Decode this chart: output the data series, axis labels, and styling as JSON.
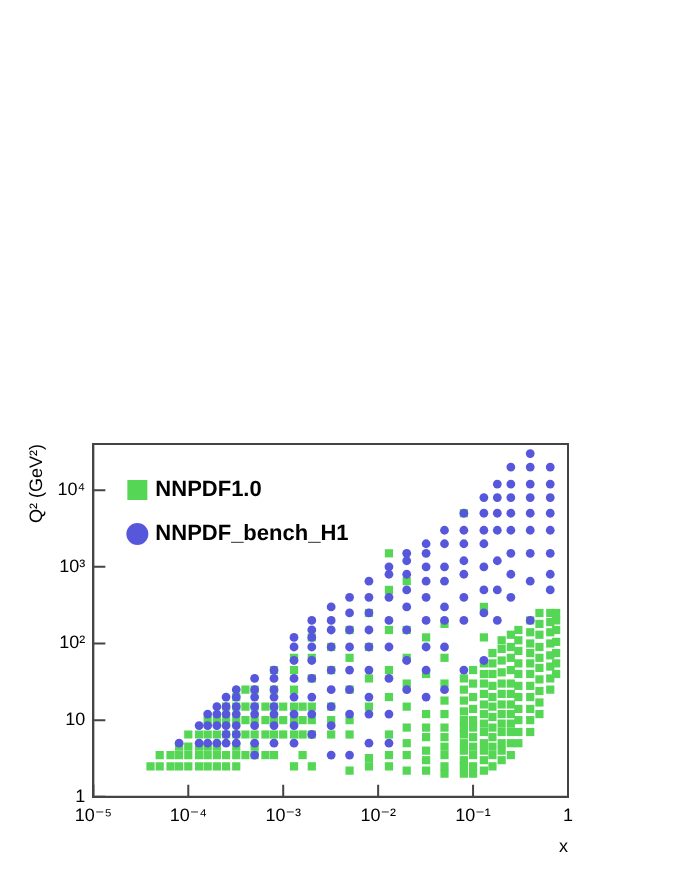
{
  "chart_data": {
    "type": "scatter",
    "xlabel": "x",
    "ylabel": "Q² (GeV²)",
    "log": "xy",
    "grid": false,
    "legend": "top left",
    "xlim": [
      1e-05,
      1
    ],
    "ylim": [
      1,
      40000
    ],
    "xticks": [
      {
        "value": 1e-05,
        "label": "10⁻⁵"
      },
      {
        "value": 0.0001,
        "label": "10⁻⁴"
      },
      {
        "value": 0.001,
        "label": "10⁻³"
      },
      {
        "value": 0.01,
        "label": "10⁻²"
      },
      {
        "value": 0.1,
        "label": "10⁻¹"
      },
      1
    ],
    "yticks": [
      1,
      10,
      {
        "value": 100,
        "label": "10²"
      },
      {
        "value": 1000,
        "label": "10³"
      },
      {
        "value": 10000,
        "label": "10⁴"
      }
    ],
    "series": [
      {
        "name": "NNPDF1.0",
        "color": "#55d655",
        "marker": "square",
        "x": [
          4e-05,
          5e-05,
          5e-05,
          6.5e-05,
          6.5e-05,
          8e-05,
          8e-05,
          8e-05,
          0.0001,
          0.0001,
          0.0001,
          0.0001,
          0.00013,
          0.00013,
          0.00013,
          0.00013,
          0.00016,
          0.00016,
          0.00016,
          0.00016,
          0.00016,
          0.0002,
          0.0002,
          0.0002,
          0.0002,
          0.0002,
          0.00025,
          0.00025,
          0.00025,
          0.00025,
          0.00025,
          0.00032,
          0.00032,
          0.00032,
          0.00032,
          0.00032,
          0.00032,
          0.00032,
          0.0004,
          0.0004,
          0.0004,
          0.0004,
          0.0004,
          0.0005,
          0.0005,
          0.0005,
          0.0005,
          0.0005,
          0.0005,
          0.00065,
          0.00065,
          0.00065,
          0.00065,
          0.0008,
          0.0008,
          0.0008,
          0.0008,
          0.0008,
          0.0008,
          0.001,
          0.001,
          0.001,
          0.0013,
          0.0013,
          0.0013,
          0.0013,
          0.0013,
          0.0013,
          0.0013,
          0.0016,
          0.0016,
          0.0016,
          0.0016,
          0.002,
          0.002,
          0.002,
          0.002,
          0.002,
          0.002,
          0.002,
          0.0032,
          0.0032,
          0.0032,
          0.0032,
          0.0032,
          0.005,
          0.005,
          0.005,
          0.005,
          0.005,
          0.005,
          0.008,
          0.008,
          0.008,
          0.008,
          0.008,
          0.008,
          0.013,
          0.013,
          0.013,
          0.013,
          0.013,
          0.013,
          0.013,
          0.013,
          0.02,
          0.02,
          0.02,
          0.02,
          0.02,
          0.02,
          0.02,
          0.02,
          0.02,
          0.032,
          0.032,
          0.032,
          0.032,
          0.032,
          0.032,
          0.032,
          0.032,
          0.05,
          0.05,
          0.05,
          0.05,
          0.05,
          0.05,
          0.05,
          0.05,
          0.05,
          0.05,
          0.05,
          0.08,
          0.08,
          0.08,
          0.08,
          0.08,
          0.08,
          0.08,
          0.08,
          0.08,
          0.08,
          0.08,
          0.08,
          0.08,
          0.1,
          0.1,
          0.1,
          0.1,
          0.1,
          0.1,
          0.1,
          0.1,
          0.1,
          0.1,
          0.1,
          0.13,
          0.13,
          0.13,
          0.13,
          0.13,
          0.13,
          0.13,
          0.13,
          0.13,
          0.13,
          0.13,
          0.13,
          0.13,
          0.13,
          0.16,
          0.16,
          0.16,
          0.16,
          0.16,
          0.16,
          0.16,
          0.16,
          0.16,
          0.16,
          0.16,
          0.16,
          0.2,
          0.2,
          0.2,
          0.2,
          0.2,
          0.2,
          0.2,
          0.2,
          0.2,
          0.2,
          0.2,
          0.2,
          0.2,
          0.25,
          0.25,
          0.25,
          0.25,
          0.25,
          0.25,
          0.25,
          0.25,
          0.25,
          0.25,
          0.25,
          0.25,
          0.3,
          0.3,
          0.3,
          0.3,
          0.3,
          0.3,
          0.3,
          0.3,
          0.3,
          0.3,
          0.3,
          0.4,
          0.4,
          0.4,
          0.4,
          0.4,
          0.4,
          0.4,
          0.4,
          0.4,
          0.4,
          0.4,
          0.5,
          0.5,
          0.5,
          0.5,
          0.5,
          0.5,
          0.5,
          0.5,
          0.5,
          0.5,
          0.65,
          0.65,
          0.65,
          0.65,
          0.65,
          0.65,
          0.65,
          0.65,
          0.75,
          0.75,
          0.75,
          0.75,
          0.75,
          0.75,
          0.75
        ],
        "values": [
          2.5,
          2.5,
          3.5,
          2.5,
          3.5,
          2.5,
          3.5,
          4.5,
          2.5,
          3.5,
          4.5,
          6.5,
          2.5,
          3.5,
          4.5,
          6.5,
          2.5,
          3.5,
          4.5,
          6.5,
          10,
          2.5,
          3.5,
          4.5,
          6.5,
          10,
          2.5,
          3.5,
          6.5,
          10,
          15,
          2.5,
          3.5,
          4.5,
          6.5,
          10,
          15,
          20,
          3.5,
          6.5,
          10,
          15,
          25,
          3.5,
          4.5,
          6.5,
          10,
          15,
          25,
          3.5,
          6.5,
          10,
          15,
          3.5,
          6.5,
          10,
          15,
          25,
          45,
          6.5,
          10,
          15,
          2.5,
          6.5,
          10,
          15,
          25,
          45,
          65,
          3.5,
          6.5,
          10,
          15,
          2.5,
          6.5,
          10,
          15,
          35,
          65,
          120,
          6.5,
          10,
          15,
          45,
          90,
          2.2,
          6.5,
          10,
          25,
          65,
          150,
          2.5,
          3.2,
          15,
          35,
          90,
          250,
          2.5,
          3.5,
          6.5,
          20,
          45,
          150,
          500,
          1500,
          2.2,
          3.5,
          5,
          8,
          15,
          30,
          65,
          150,
          650,
          2.2,
          3,
          4,
          6,
          8,
          12,
          40,
          120,
          2,
          2.5,
          3.5,
          4.5,
          6,
          8,
          12,
          18,
          30,
          65,
          180,
          2,
          2.5,
          3,
          4,
          5,
          6.5,
          8,
          10,
          13,
          18,
          25,
          35,
          5000,
          2,
          2.5,
          3.5,
          4.5,
          6,
          8,
          10,
          14,
          20,
          30,
          45,
          2.2,
          3,
          4,
          5,
          7,
          9,
          12,
          16,
          22,
          30,
          40,
          55,
          120,
          300,
          2.5,
          3.5,
          4.5,
          6,
          8,
          11,
          15,
          20,
          28,
          40,
          55,
          75,
          3,
          4,
          5,
          7,
          9,
          12,
          16,
          22,
          30,
          42,
          60,
          85,
          110,
          3.5,
          5,
          7,
          9,
          12,
          16,
          22,
          30,
          45,
          65,
          90,
          130,
          5,
          7,
          10,
          14,
          20,
          28,
          40,
          55,
          80,
          110,
          150,
          7,
          10,
          14,
          20,
          28,
          40,
          55,
          75,
          100,
          140,
          200,
          12,
          17,
          24,
          34,
          48,
          65,
          90,
          130,
          180,
          250,
          25,
          35,
          50,
          70,
          100,
          140,
          190,
          250,
          40,
          55,
          75,
          105,
          150,
          200,
          250
        ]
      },
      {
        "name": "NNPDF_bench_H1",
        "color": "#5757dc",
        "marker": "circle",
        "x": [
          8e-05,
          0.00013,
          0.00013,
          0.00016,
          0.00016,
          0.00016,
          0.0002,
          0.0002,
          0.0002,
          0.0002,
          0.00025,
          0.00025,
          0.00025,
          0.00025,
          0.00025,
          0.00025,
          0.00032,
          0.00032,
          0.00032,
          0.00032,
          0.00032,
          0.00032,
          0.00032,
          0.0005,
          0.0005,
          0.0005,
          0.0005,
          0.0005,
          0.0005,
          0.0005,
          0.0005,
          0.0008,
          0.0008,
          0.0008,
          0.0008,
          0.0008,
          0.0008,
          0.0008,
          0.0008,
          0.0013,
          0.0013,
          0.0013,
          0.0013,
          0.0013,
          0.0013,
          0.0013,
          0.0013,
          0.002,
          0.002,
          0.002,
          0.002,
          0.002,
          0.002,
          0.002,
          0.002,
          0.002,
          0.0032,
          0.0032,
          0.0032,
          0.0032,
          0.0032,
          0.0032,
          0.0032,
          0.0032,
          0.0032,
          0.005,
          0.005,
          0.005,
          0.005,
          0.005,
          0.005,
          0.005,
          0.005,
          0.008,
          0.008,
          0.008,
          0.008,
          0.008,
          0.008,
          0.008,
          0.008,
          0.008,
          0.013,
          0.013,
          0.013,
          0.013,
          0.013,
          0.013,
          0.013,
          0.013,
          0.02,
          0.02,
          0.02,
          0.02,
          0.02,
          0.02,
          0.02,
          0.02,
          0.032,
          0.032,
          0.032,
          0.032,
          0.032,
          0.032,
          0.032,
          0.032,
          0.032,
          0.05,
          0.05,
          0.05,
          0.05,
          0.05,
          0.05,
          0.05,
          0.05,
          0.08,
          0.08,
          0.08,
          0.08,
          0.08,
          0.08,
          0.08,
          0.08,
          0.13,
          0.13,
          0.13,
          0.13,
          0.13,
          0.13,
          0.13,
          0.13,
          0.18,
          0.18,
          0.18,
          0.18,
          0.18,
          0.18,
          0.18,
          0.25,
          0.25,
          0.25,
          0.25,
          0.25,
          0.25,
          0.25,
          0.25,
          0.4,
          0.4,
          0.4,
          0.4,
          0.4,
          0.4,
          0.4,
          0.4,
          0.4,
          0.65,
          0.65,
          0.65,
          0.65,
          0.65,
          0.65,
          0.65,
          0.65
        ],
        "values": [
          5,
          5,
          8.5,
          5,
          8.5,
          12,
          5,
          8.5,
          12,
          15,
          5,
          6.5,
          8.5,
          12,
          15,
          20,
          5,
          6.5,
          8.5,
          12,
          15,
          20,
          25,
          3.5,
          5,
          8.5,
          12,
          15,
          20,
          25,
          35,
          5,
          8.5,
          12,
          15,
          20,
          25,
          35,
          45,
          5,
          8.5,
          12,
          20,
          35,
          60,
          90,
          120,
          6.5,
          12,
          20,
          35,
          60,
          90,
          120,
          150,
          200,
          3.5,
          8.5,
          15,
          25,
          45,
          90,
          150,
          200,
          300,
          3.5,
          12,
          25,
          45,
          90,
          150,
          250,
          400,
          5,
          12,
          20,
          45,
          90,
          150,
          250,
          400,
          650,
          5,
          12,
          35,
          90,
          200,
          400,
          800,
          1000,
          25,
          60,
          150,
          300,
          500,
          800,
          1200,
          1500,
          20,
          45,
          90,
          200,
          400,
          650,
          1000,
          1500,
          2000,
          25,
          90,
          200,
          300,
          650,
          1000,
          2000,
          3000,
          45,
          200,
          400,
          800,
          1200,
          2000,
          3000,
          5000,
          60,
          250,
          500,
          1000,
          2000,
          3000,
          5000,
          8000,
          200,
          500,
          1200,
          3000,
          5000,
          8000,
          12000,
          400,
          800,
          1500,
          3000,
          5000,
          8000,
          12000,
          20000,
          200,
          650,
          1500,
          3000,
          5000,
          8000,
          12000,
          20000,
          30000,
          500,
          800,
          1500,
          3000,
          5000,
          8000,
          12000,
          20000
        ]
      }
    ]
  }
}
